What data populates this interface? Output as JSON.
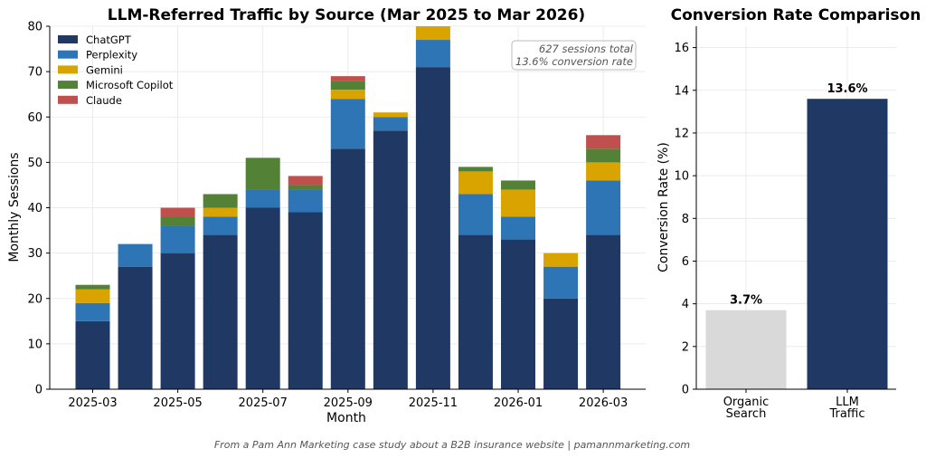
{
  "footer": "From a Pam Ann Marketing case study about a B2B insurance website  |  pamannmarketing.com",
  "chart_data": [
    {
      "type": "bar",
      "stacked": true,
      "title": "LLM-Referred Traffic by Source (Mar 2025 to Mar 2026)",
      "xlabel": "Month",
      "ylabel": "Monthly Sessions",
      "ylim": [
        0,
        80
      ],
      "yticks": [
        0,
        10,
        20,
        30,
        40,
        50,
        60,
        70,
        80
      ],
      "categories": [
        "2025-03",
        "2025-04",
        "2025-05",
        "2025-06",
        "2025-07",
        "2025-08",
        "2025-09",
        "2025-10",
        "2025-11",
        "2025-12",
        "2026-01",
        "2026-02",
        "2026-03"
      ],
      "xtick_labels": [
        "2025-03",
        "2025-05",
        "2025-07",
        "2025-09",
        "2025-11",
        "2026-01",
        "2026-03"
      ],
      "grid": true,
      "legend_position": "top-left",
      "series": [
        {
          "name": "ChatGPT",
          "color": "#1f3864",
          "values": [
            15,
            27,
            30,
            34,
            40,
            39,
            53,
            57,
            71,
            34,
            33,
            20,
            34
          ]
        },
        {
          "name": "Perplexity",
          "color": "#2e75b6",
          "values": [
            4,
            5,
            6,
            4,
            4,
            5,
            11,
            3,
            6,
            9,
            5,
            7,
            12
          ]
        },
        {
          "name": "Gemini",
          "color": "#d9a300",
          "values": [
            3,
            0,
            0,
            2,
            0,
            0,
            2,
            1,
            3,
            5,
            6,
            3,
            4
          ]
        },
        {
          "name": "Microsoft Copilot",
          "color": "#538135",
          "values": [
            1,
            0,
            2,
            3,
            7,
            1,
            2,
            0,
            0,
            1,
            2,
            0,
            3
          ]
        },
        {
          "name": "Claude",
          "color": "#c0504d",
          "values": [
            0,
            0,
            2,
            0,
            0,
            2,
            1,
            0,
            0,
            0,
            0,
            0,
            3
          ]
        }
      ],
      "annotation": [
        "627 sessions total",
        "13.6% conversion rate"
      ]
    },
    {
      "type": "bar",
      "title": "Conversion Rate Comparison",
      "ylabel": "Conversion Rate (%)",
      "ylim": [
        0,
        17
      ],
      "yticks": [
        0,
        2,
        4,
        6,
        8,
        10,
        12,
        14,
        16
      ],
      "categories": [
        [
          "Organic",
          "Search"
        ],
        [
          "LLM",
          "Traffic"
        ]
      ],
      "values": [
        3.7,
        13.6
      ],
      "value_labels": [
        "3.7%",
        "13.6%"
      ],
      "colors": [
        "#d9d9d9",
        "#1f3864"
      ],
      "grid": true
    }
  ]
}
